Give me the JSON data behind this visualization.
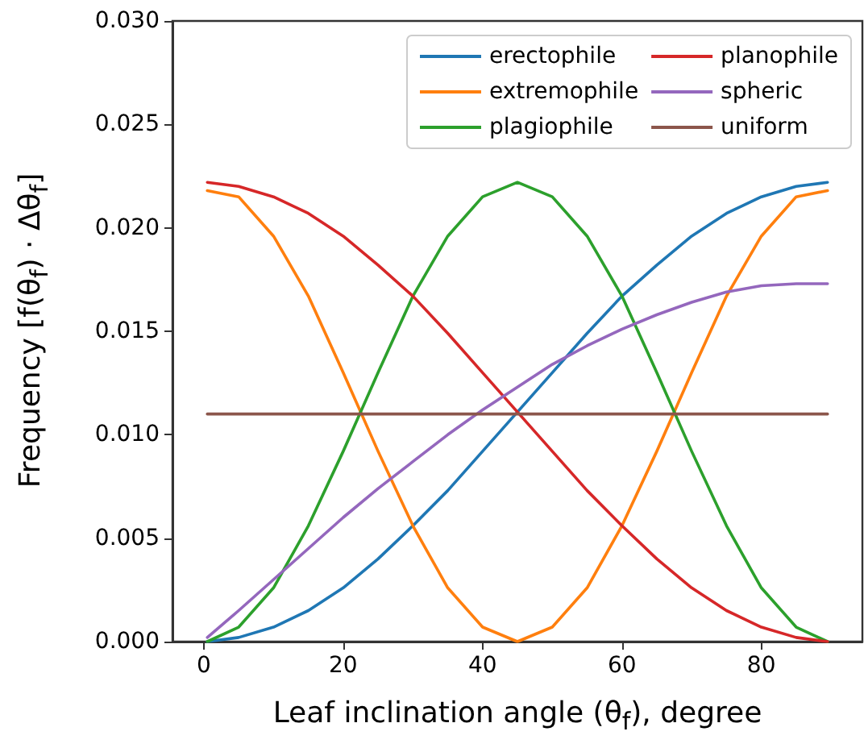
{
  "chart_data": {
    "type": "line",
    "xlabel": "Leaf inclination angle (θ$_{f}$), degree",
    "ylabel": "Frequency  [f(θ$_{f}$) · Δθ$_{f}$]",
    "x": [
      0.5,
      5,
      10,
      15,
      20,
      25,
      30,
      35,
      40,
      45,
      50,
      55,
      60,
      65,
      70,
      75,
      80,
      85,
      89.5
    ],
    "series": [
      {
        "name": "erectophile",
        "color": "#1f77b4",
        "values": [
          0.0,
          0.0002,
          0.0007,
          0.0015,
          0.0026,
          0.004,
          0.0056,
          0.0073,
          0.0092,
          0.0111,
          0.013,
          0.0149,
          0.0167,
          0.0182,
          0.0196,
          0.0207,
          0.0215,
          0.022,
          0.0222
        ]
      },
      {
        "name": "extremophile",
        "color": "#ff7f0e",
        "values": [
          0.0218,
          0.0215,
          0.0196,
          0.0167,
          0.013,
          0.0092,
          0.0056,
          0.0026,
          0.0007,
          0.0,
          0.0007,
          0.0026,
          0.0056,
          0.0092,
          0.013,
          0.0167,
          0.0196,
          0.0215,
          0.0218
        ]
      },
      {
        "name": "plagiophile",
        "color": "#2ca02c",
        "values": [
          0.0,
          0.0007,
          0.0026,
          0.0056,
          0.0092,
          0.013,
          0.0167,
          0.0196,
          0.0215,
          0.0222,
          0.0215,
          0.0196,
          0.0167,
          0.013,
          0.0092,
          0.0056,
          0.0026,
          0.0007,
          0.0
        ]
      },
      {
        "name": "planophile",
        "color": "#d62728",
        "values": [
          0.0222,
          0.022,
          0.0215,
          0.0207,
          0.0196,
          0.0182,
          0.0167,
          0.0149,
          0.013,
          0.0111,
          0.0092,
          0.0073,
          0.0056,
          0.004,
          0.0026,
          0.0015,
          0.0007,
          0.0002,
          0.0
        ]
      },
      {
        "name": "spheric",
        "color": "#9467bd",
        "values": [
          0.0002,
          0.0015,
          0.003,
          0.0045,
          0.006,
          0.0074,
          0.0087,
          0.01,
          0.0112,
          0.0123,
          0.0134,
          0.0143,
          0.0151,
          0.0158,
          0.0164,
          0.0169,
          0.0172,
          0.0173,
          0.0173
        ]
      },
      {
        "name": "uniform",
        "color": "#8c564b",
        "values": [
          0.011,
          0.011,
          0.011,
          0.011,
          0.011,
          0.011,
          0.011,
          0.011,
          0.011,
          0.011,
          0.011,
          0.011,
          0.011,
          0.011,
          0.011,
          0.011,
          0.011,
          0.011,
          0.011
        ]
      }
    ],
    "xlim": [
      -4.5,
      94.5
    ],
    "xticks": [
      0,
      20,
      40,
      60,
      80
    ],
    "ylim": [
      0,
      0.03
    ],
    "yticks": [
      {
        "value": 0,
        "label": "0.000"
      },
      {
        "value": 0.005,
        "label": "0.005"
      },
      {
        "value": 0.01,
        "label": "0.010"
      },
      {
        "value": 0.015,
        "label": "0.015"
      },
      {
        "value": 0.02,
        "label": "0.020"
      },
      {
        "value": 0.025,
        "label": "0.025"
      },
      {
        "value": 0.03,
        "label": "0.030"
      }
    ],
    "grid": false,
    "legend": "top right",
    "marker": "none",
    "line_style": "solid"
  }
}
